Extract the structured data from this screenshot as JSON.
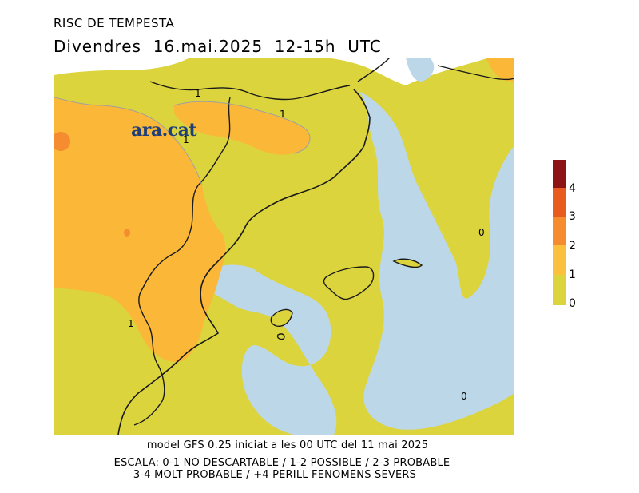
{
  "title": "RISC DE TEMPESTA",
  "subtitle": "Divendres  16.mai.2025  12-15h  UTC",
  "logo_text": "ara.cat",
  "map": {
    "colors": {
      "sea": "#bcd8e8",
      "land_level_0_1": "#dcd43c",
      "land_level_1_2": "#fbb838",
      "land_level_2_3": "#f58c30",
      "no_data": "#ffffff",
      "border": "#1a1a1a",
      "contour": "#a0a0a0"
    },
    "contour_labels": [
      "1",
      "1",
      "1",
      "1",
      "0",
      "0"
    ]
  },
  "legend": {
    "levels": [
      {
        "label": "0",
        "color": "#dcd43c"
      },
      {
        "label": "1",
        "color": "#fbc03c"
      },
      {
        "label": "2",
        "color": "#f58c30"
      },
      {
        "label": "3",
        "color": "#e85a20"
      },
      {
        "label": "4",
        "color": "#8c1414"
      }
    ]
  },
  "footer": {
    "model": "model GFS 0.25 iniciat a les 00 UTC del 11 mai 2025",
    "scale_line1": "ESCALA: 0-1 NO DESCARTABLE / 1-2 POSSIBLE / 2-3 PROBABLE",
    "scale_line2": "3-4 MOLT PROBABLE / +4 PERILL FENOMENS SEVERS"
  }
}
